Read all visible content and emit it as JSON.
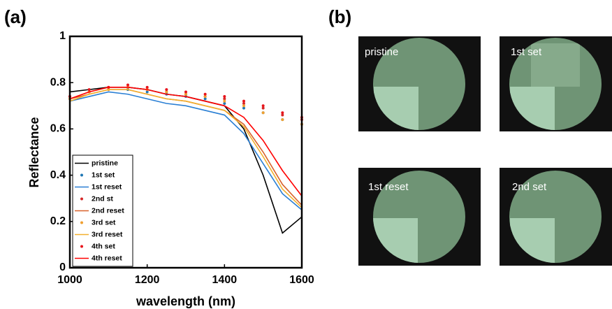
{
  "panel_a_label": "(a)",
  "chart_data": {
    "type": "line",
    "x_label": "wavelength (nm)",
    "y_label": "Reflectance",
    "x": [
      1000,
      1050,
      1100,
      1150,
      1200,
      1250,
      1300,
      1350,
      1400,
      1450,
      1500,
      1550,
      1600
    ],
    "xlim": [
      1000,
      1600
    ],
    "xticks": [
      1000,
      1200,
      1400,
      1600
    ],
    "ylim": [
      0,
      1
    ],
    "yticks": [
      0,
      0.2,
      0.4,
      0.6,
      0.8,
      1
    ],
    "legend": "lower left",
    "series": [
      {
        "name": "pristine",
        "color": "#000000",
        "style": "line",
        "values": [
          0.76,
          0.77,
          0.78,
          0.78,
          0.77,
          0.75,
          0.74,
          0.72,
          0.7,
          0.6,
          0.4,
          0.15,
          0.22
        ]
      },
      {
        "name": "1st set",
        "color": "#1f77b4",
        "style": "dots",
        "values": [
          0.73,
          0.76,
          0.77,
          0.77,
          0.76,
          0.75,
          0.74,
          0.73,
          0.71,
          0.69,
          0.67,
          0.64,
          0.62
        ]
      },
      {
        "name": "1st reset",
        "color": "#2a7fd4",
        "style": "line",
        "values": [
          0.72,
          0.74,
          0.76,
          0.75,
          0.73,
          0.71,
          0.7,
          0.68,
          0.66,
          0.58,
          0.45,
          0.32,
          0.25
        ]
      },
      {
        "name": "2nd st",
        "color": "#d62728",
        "style": "dots",
        "values": [
          0.74,
          0.76,
          0.78,
          0.78,
          0.77,
          0.76,
          0.75,
          0.74,
          0.73,
          0.71,
          0.69,
          0.66,
          0.64
        ]
      },
      {
        "name": "2nd reset",
        "color": "#d9622b",
        "style": "line",
        "values": [
          0.73,
          0.75,
          0.77,
          0.77,
          0.75,
          0.73,
          0.72,
          0.7,
          0.68,
          0.62,
          0.5,
          0.36,
          0.27
        ]
      },
      {
        "name": "3rd set",
        "color": "#f0a030",
        "style": "dots",
        "values": [
          0.73,
          0.76,
          0.77,
          0.78,
          0.77,
          0.76,
          0.75,
          0.74,
          0.72,
          0.7,
          0.67,
          0.64,
          0.62
        ]
      },
      {
        "name": "3rd reset",
        "color": "#f2b02e",
        "style": "line",
        "values": [
          0.72,
          0.75,
          0.77,
          0.77,
          0.75,
          0.73,
          0.72,
          0.7,
          0.68,
          0.61,
          0.48,
          0.34,
          0.26
        ]
      },
      {
        "name": "4th set",
        "color": "#e8141c",
        "style": "dots",
        "values": [
          0.74,
          0.77,
          0.78,
          0.79,
          0.78,
          0.77,
          0.76,
          0.75,
          0.74,
          0.72,
          0.7,
          0.67,
          0.65
        ]
      },
      {
        "name": "4th reset",
        "color": "#ff0000",
        "style": "line",
        "values": [
          0.73,
          0.76,
          0.78,
          0.78,
          0.77,
          0.75,
          0.74,
          0.72,
          0.7,
          0.65,
          0.55,
          0.42,
          0.31
        ]
      }
    ]
  },
  "panel_b": {
    "label": "(b)",
    "images": [
      {
        "label": "pristine"
      },
      {
        "label": "1st set"
      },
      {
        "label": "1st reset"
      },
      {
        "label": "2nd set"
      }
    ]
  }
}
